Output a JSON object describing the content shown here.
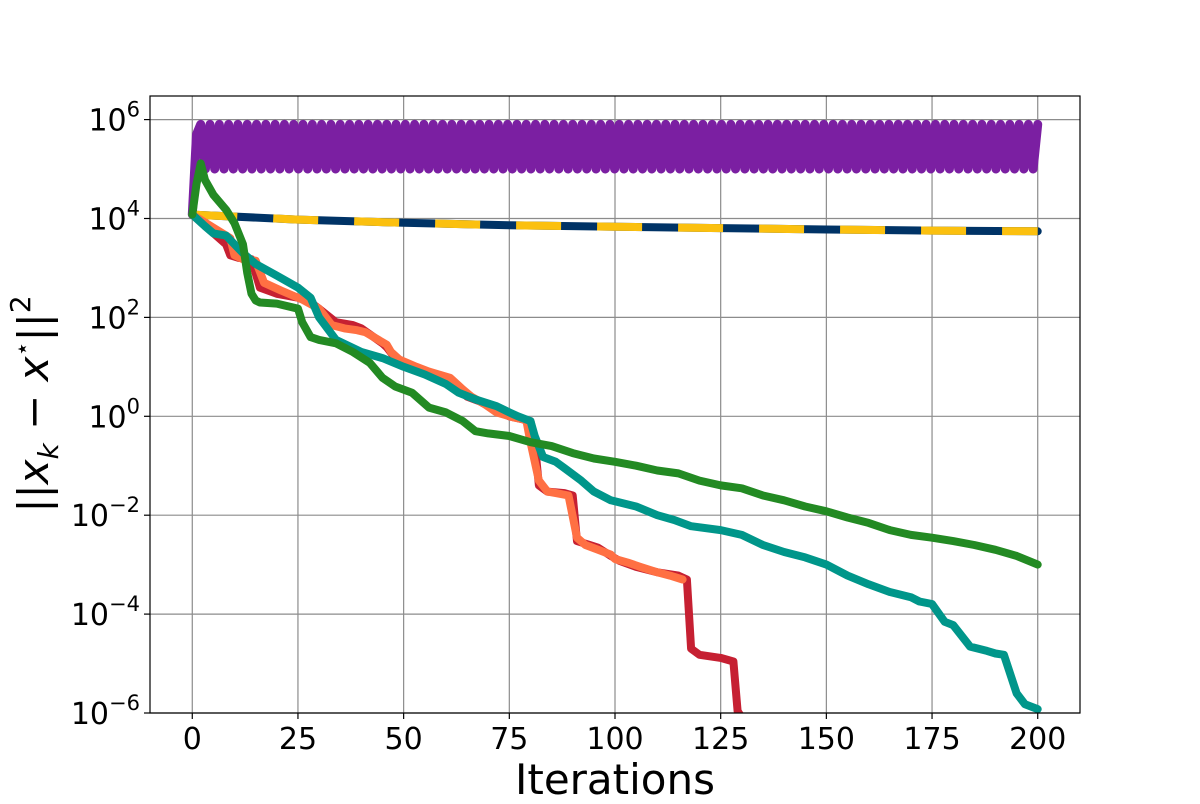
{
  "chart_data": {
    "type": "line",
    "xlabel": "Iterations",
    "ylabel_parts": {
      "open": "||",
      "x": "x",
      "sub": "k",
      "minus": " − ",
      "x2": "x",
      "sup_star": "⋆",
      "close": "||",
      "sup2": "2"
    },
    "xlim": [
      -10,
      210
    ],
    "ylim": [
      1e-06,
      3000000.0
    ],
    "yscale": "log",
    "grid": true,
    "legend": "none",
    "xticks": [
      0,
      25,
      50,
      75,
      100,
      125,
      150,
      175,
      200
    ],
    "xtick_labels": [
      "0",
      "25",
      "50",
      "75",
      "100",
      "125",
      "150",
      "175",
      "200"
    ],
    "yticks": [
      1e-06,
      0.0001,
      0.01,
      1,
      100,
      10000,
      1000000
    ],
    "ytick_labels": [
      {
        "base": "10",
        "exp": "−6"
      },
      {
        "base": "10",
        "exp": "−4"
      },
      {
        "base": "10",
        "exp": "−2"
      },
      {
        "base": "10",
        "exp": "0"
      },
      {
        "base": "10",
        "exp": "2"
      },
      {
        "base": "10",
        "exp": "4"
      },
      {
        "base": "10",
        "exp": "6"
      }
    ],
    "series": [
      {
        "color": "#7b1fa2",
        "width": 9,
        "style": "oscillating",
        "x": [
          0,
          1,
          200
        ],
        "y": [
          12000,
          500000,
          800000
        ],
        "oscillation": {
          "start": 2,
          "end": 199,
          "period": 2.2,
          "low": 100000,
          "high": 800000
        }
      },
      {
        "color": "#003366",
        "width": 8,
        "dash_color": "#fbc00f",
        "x": [
          0,
          25,
          50,
          75,
          100,
          125,
          150,
          175,
          200
        ],
        "y": [
          12000,
          9500,
          8200,
          7300,
          6800,
          6400,
          6000,
          5700,
          5500
        ]
      },
      {
        "color": "#c62032",
        "width": 8,
        "x": [
          0,
          8,
          9,
          11,
          14,
          16,
          20,
          25,
          28,
          30,
          34,
          38,
          40,
          45,
          46,
          48,
          52,
          55,
          60,
          64,
          65,
          68,
          72,
          75,
          80,
          81,
          82,
          84,
          88,
          90,
          91,
          94,
          96,
          99,
          101,
          105,
          110,
          115,
          117,
          118,
          120,
          125,
          128,
          129,
          130,
          133,
          137
        ],
        "y": [
          12000,
          3000,
          1800,
          1600,
          1500,
          400,
          300,
          250,
          200,
          150,
          80,
          70,
          60,
          30,
          25,
          15,
          10,
          8,
          5,
          3,
          2.5,
          2,
          1.3,
          1,
          0.8,
          0.3,
          0.04,
          0.03,
          0.028,
          0.025,
          0.003,
          0.0025,
          0.0022,
          0.0015,
          0.0012,
          0.0009,
          0.0007,
          0.0006,
          0.0005,
          2e-05,
          1.5e-05,
          1.3e-05,
          1.1e-05,
          1.1e-06,
          8e-07,
          6e-07,
          1e-07
        ]
      },
      {
        "color": "#ff7043",
        "width": 8,
        "x": [
          0,
          9,
          10,
          12,
          15,
          17,
          21,
          26,
          30,
          33,
          36,
          39,
          41,
          46,
          47,
          49,
          53,
          56,
          61,
          64,
          66,
          69,
          72,
          76,
          79,
          80,
          82,
          84,
          86,
          89,
          91,
          93,
          96,
          99,
          100,
          103,
          106,
          110,
          113,
          116
        ],
        "y": [
          12000,
          4000,
          1800,
          1500,
          1400,
          500,
          350,
          230,
          150,
          70,
          60,
          55,
          50,
          28,
          20,
          14,
          10,
          8,
          6,
          3.5,
          2.5,
          1.8,
          1.2,
          0.95,
          0.85,
          0.3,
          0.05,
          0.03,
          0.028,
          0.025,
          0.0035,
          0.0025,
          0.002,
          0.0016,
          0.0013,
          0.0011,
          0.0009,
          0.0007,
          0.0006,
          0.0005
        ]
      },
      {
        "color": "#00968a",
        "width": 8,
        "x": [
          0,
          3,
          5,
          8,
          12,
          15,
          20,
          25,
          28,
          30,
          34,
          40,
          45,
          50,
          55,
          60,
          63,
          67,
          72,
          75,
          77,
          80,
          81,
          83,
          86,
          88,
          92,
          95,
          99,
          105,
          110,
          114,
          118,
          125,
          130,
          135,
          140,
          145,
          150,
          155,
          160,
          165,
          170,
          172,
          175,
          178,
          180,
          184,
          188,
          190,
          192,
          195,
          197,
          200
        ],
        "y": [
          12000,
          7000,
          5000,
          4500,
          2000,
          1200,
          700,
          400,
          250,
          100,
          35,
          20,
          15,
          10,
          7,
          4.5,
          3,
          2.2,
          1.6,
          1.2,
          1,
          0.8,
          0.4,
          0.15,
          0.12,
          0.09,
          0.05,
          0.03,
          0.02,
          0.015,
          0.01,
          0.008,
          0.006,
          0.005,
          0.004,
          0.0025,
          0.0018,
          0.0014,
          0.001,
          0.0006,
          0.0004,
          0.00028,
          0.00022,
          0.00018,
          0.00016,
          7e-05,
          6e-05,
          2.2e-05,
          1.8e-05,
          1.6e-05,
          1.5e-05,
          2.5e-06,
          1.5e-06,
          1.2e-06
        ]
      },
      {
        "color": "#238a23",
        "width": 8,
        "x": [
          0,
          1,
          2,
          3,
          5,
          8,
          10,
          12,
          13,
          14,
          15,
          16,
          20,
          25,
          26,
          28,
          30,
          34,
          38,
          42,
          45,
          48,
          52,
          56,
          60,
          64,
          67,
          70,
          75,
          80,
          85,
          90,
          95,
          100,
          105,
          110,
          115,
          120,
          125,
          130,
          135,
          140,
          145,
          150,
          155,
          160,
          165,
          170,
          175,
          180,
          185,
          190,
          195,
          200
        ],
        "y": [
          12000,
          50000,
          130000,
          60000,
          30000,
          15000,
          8000,
          3000,
          800,
          300,
          220,
          200,
          190,
          150,
          80,
          40,
          35,
          30,
          20,
          12,
          6,
          4,
          3,
          1.5,
          1.2,
          0.8,
          0.5,
          0.45,
          0.4,
          0.3,
          0.25,
          0.18,
          0.14,
          0.12,
          0.1,
          0.08,
          0.07,
          0.05,
          0.04,
          0.035,
          0.025,
          0.02,
          0.015,
          0.012,
          0.009,
          0.007,
          0.005,
          0.004,
          0.0035,
          0.003,
          0.0025,
          0.002,
          0.0015,
          0.001
        ]
      }
    ]
  }
}
